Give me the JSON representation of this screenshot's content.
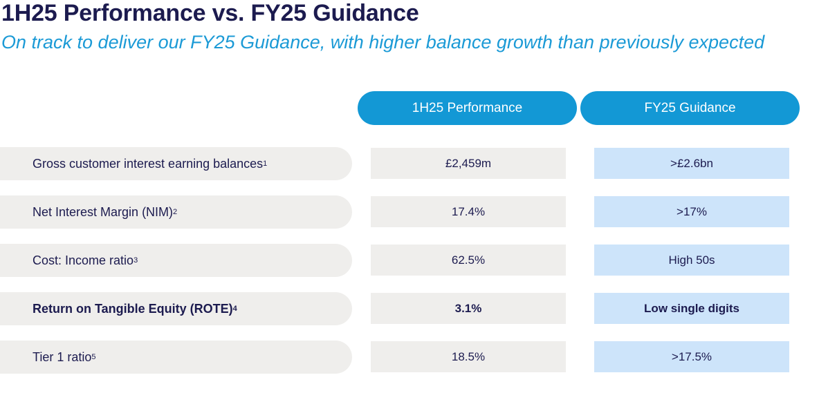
{
  "title": "1H25 Performance vs. FY25 Guidance",
  "subtitle": "On track to deliver our FY25 Guidance, with higher balance growth than previously expected",
  "columns": {
    "performance": "1H25 Performance",
    "guidance": "FY25 Guidance"
  },
  "rows": [
    {
      "label": "Gross customer interest earning balances",
      "footnote": "1",
      "performance": "£2,459m",
      "guidance": ">£2.6bn"
    },
    {
      "label": "Net Interest Margin (NIM)",
      "footnote": "2",
      "performance": "17.4%",
      "guidance": ">17%"
    },
    {
      "label": "Cost: Income ratio",
      "footnote": "3",
      "performance": "62.5%",
      "guidance": "High 50s"
    },
    {
      "label": "Return on Tangible Equity (ROTE)",
      "footnote": "4",
      "performance": "3.1%",
      "guidance": "Low single digits"
    },
    {
      "label": "Tier 1 ratio",
      "footnote": "5",
      "performance": "18.5%",
      "guidance": ">17.5%"
    }
  ]
}
